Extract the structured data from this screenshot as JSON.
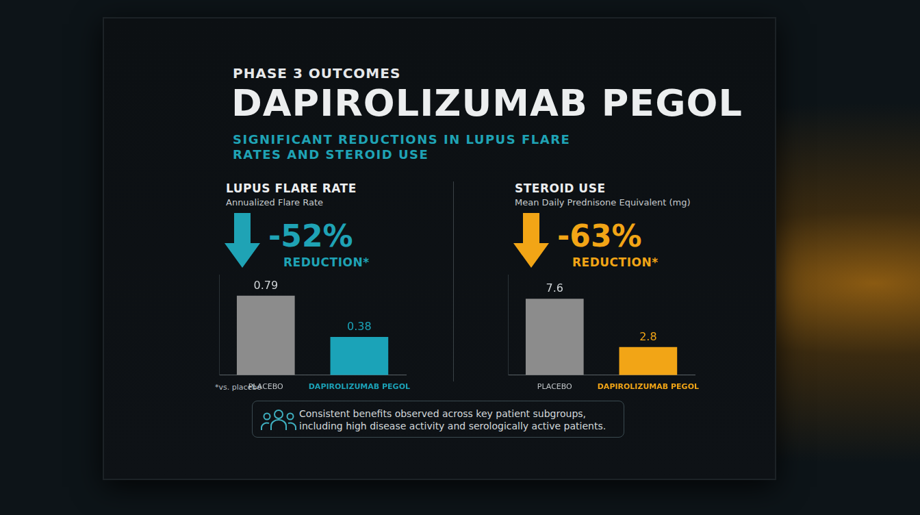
{
  "header": {
    "eyebrow": "PHASE 3 OUTCOMES",
    "title": "DAPIROLIZUMAB PEGOL",
    "subtitle": "SIGNIFICANT REDUCTIONS IN LUPUS FLARE RATES AND STEROID USE"
  },
  "chart_data": [
    {
      "type": "bar",
      "title": "LUPUS FLARE RATE",
      "subtitle": "Annualized Flare Rate",
      "annotations": [
        "-52%",
        "REDUCTION*"
      ],
      "categories": [
        "PLACEBO",
        "DAPIROLIZUMAB PEGOL"
      ],
      "values": [
        0.79,
        0.38
      ],
      "colors": [
        "#8c8c8c",
        "#1ba3b8"
      ],
      "color": "#1fa3b5",
      "ylim": [
        0,
        1
      ],
      "grid": false,
      "tick_labels": "x",
      "data_labels": true
    },
    {
      "type": "bar",
      "title": "STEROID USE",
      "subtitle": "Mean Daily Prednisone Equivalent (mg)",
      "annotations": [
        "-63%",
        "REDUCTION*"
      ],
      "categories": [
        "PLACEBO",
        "DAPIROLIZUMAB PEGOL"
      ],
      "values": [
        7.6,
        2.8
      ],
      "colors": [
        "#8c8c8c",
        "#f2a516"
      ],
      "color": "#f2a516",
      "ylim": [
        0,
        10
      ],
      "grid": false,
      "tick_labels": "x",
      "data_labels": true
    }
  ],
  "footnote": "*vs. placebo",
  "note": "Consistent benefits observed across key patient subgroups, including high disease activity and serologically active patients."
}
